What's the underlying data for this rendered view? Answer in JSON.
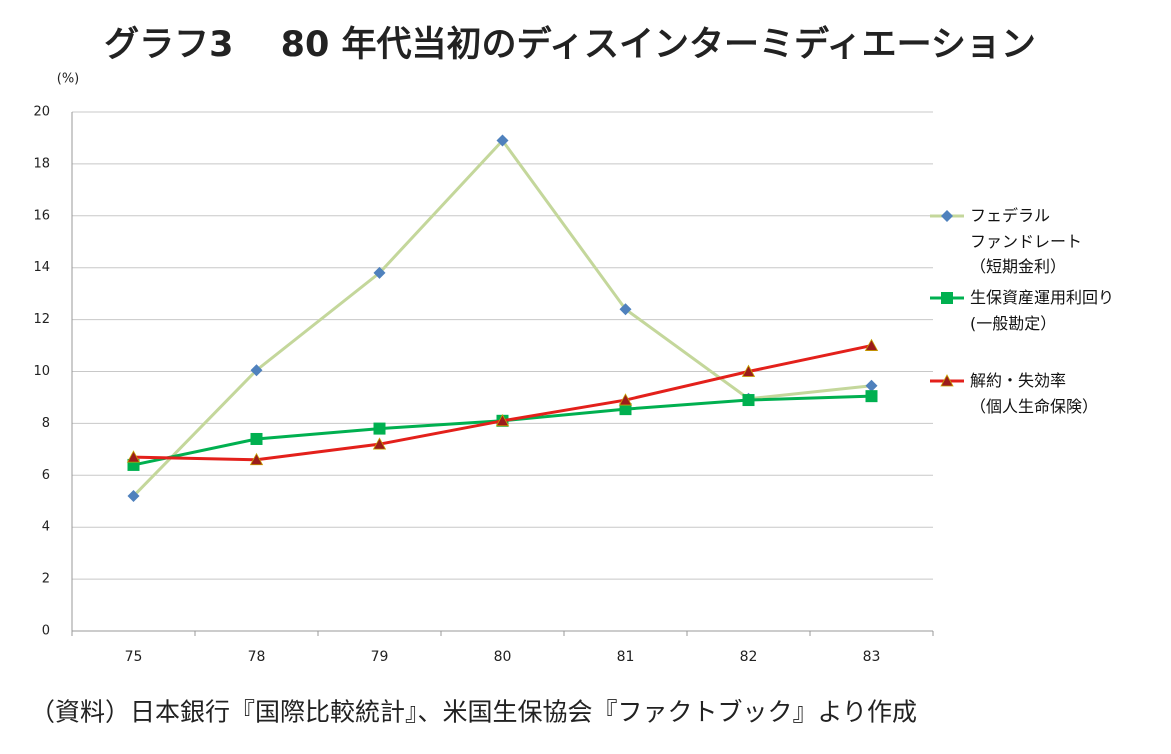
{
  "chart_data": {
    "type": "line",
    "title": "グラフ3　 80 年代当初のディスインターミディエーション",
    "y_unit": "(%)",
    "categories": [
      "75",
      "78",
      "79",
      "80",
      "81",
      "82",
      "83"
    ],
    "series": [
      {
        "name": "フェデラル\nファンドレート\n（短期金利）",
        "color": "#c4d79b",
        "marker_color": "#4f81bd",
        "marker": "diamond",
        "values": [
          5.2,
          10.05,
          13.8,
          18.9,
          12.4,
          8.95,
          9.45
        ]
      },
      {
        "name": "生保資産運用利回り\n(一般勘定）",
        "color": "#00b050",
        "marker_color": "#00b050",
        "marker": "square",
        "values": [
          6.4,
          7.4,
          7.8,
          8.1,
          8.55,
          8.9,
          9.05
        ]
      },
      {
        "name": "解約・失効率\n（個人生命保険）",
        "color": "#e3201b",
        "marker_color": "#9b1c1c",
        "marker": "triangle",
        "values": [
          6.7,
          6.6,
          7.2,
          8.1,
          8.9,
          10.0,
          11.0
        ]
      }
    ],
    "ylim": [
      0,
      20
    ],
    "yticks": [
      0,
      2,
      4,
      6,
      8,
      10,
      12,
      14,
      16,
      18,
      20
    ],
    "grid": true,
    "legend": "right",
    "source": "（資料）日本銀行『国際比較統計』、米国生保協会『ファクトブック』より作成"
  }
}
